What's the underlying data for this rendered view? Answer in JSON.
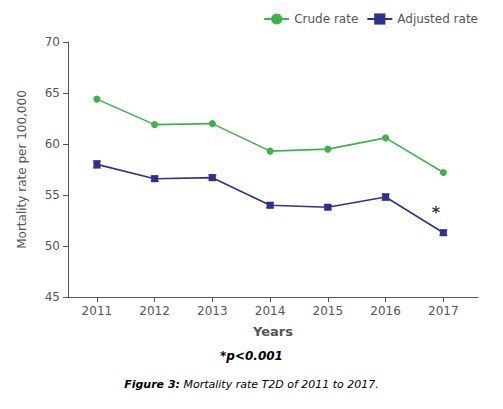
{
  "chart_data": {
    "type": "line",
    "x": [
      2011,
      2012,
      2013,
      2014,
      2015,
      2016,
      2017
    ],
    "xlabel": "Years",
    "ylabel": "Mortality rate per 100,000",
    "xlim": [
      2010.5,
      2017.6
    ],
    "xticks": [
      2011,
      2012,
      2013,
      2014,
      2015,
      2016,
      2017
    ],
    "ylim": [
      45,
      70
    ],
    "yticks": [
      45,
      50,
      55,
      60,
      65,
      70
    ],
    "grid": false,
    "legend": "upper right",
    "series": [
      {
        "name": "Crude rate",
        "color": "#3cb34a",
        "marker": "circle",
        "values": [
          64.4,
          61.9,
          62.0,
          59.3,
          59.5,
          60.6,
          57.2
        ]
      },
      {
        "name": "Adjusted rate",
        "color": "#2e3192",
        "marker": "square",
        "values": [
          58.0,
          56.6,
          56.7,
          54.0,
          53.8,
          54.8,
          51.3
        ],
        "err_low": [
          0.35,
          0.25,
          0.25,
          0.25,
          0.2,
          0.3,
          0.25
        ],
        "err_high": [
          0.35,
          0.25,
          0.25,
          0.25,
          0.2,
          0.3,
          0.25
        ]
      }
    ],
    "annotations": [
      {
        "text": "*",
        "x": 2016.87,
        "y": 53.3
      }
    ],
    "footnote": "*p<0.001",
    "caption": "Figure 3: Mortality rate T2D of 2011 to 2017."
  }
}
